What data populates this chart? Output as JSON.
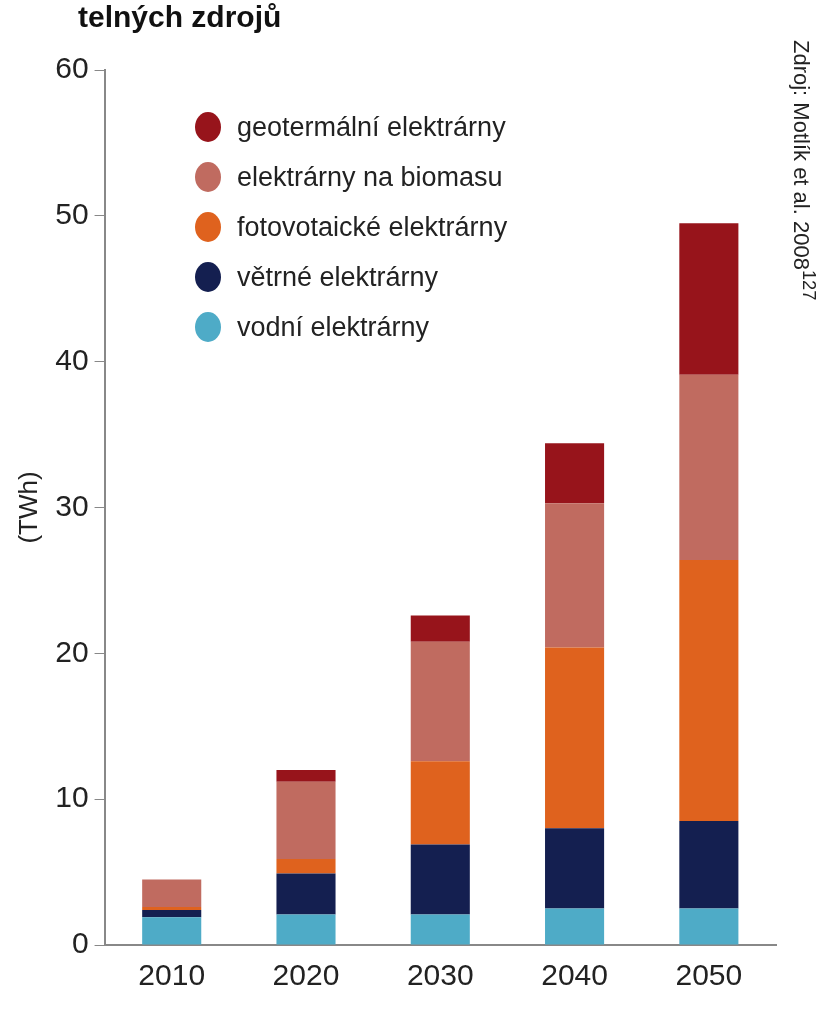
{
  "chart_data": {
    "type": "bar",
    "title": "telných zdrojů",
    "ylabel": "(TWh)",
    "annotations": [
      "Zdroj: Motlík et al. 2008$^{127}$"
    ],
    "categories": [
      "2010",
      "2020",
      "2030",
      "2040",
      "2050"
    ],
    "stacked": true,
    "ylim": [
      0,
      60
    ],
    "yticks": [
      0,
      10,
      20,
      30,
      40,
      50,
      60
    ],
    "grid": false,
    "legend": "top left",
    "marker": "circle",
    "series": [
      {
        "name": "vodní elektrárny",
        "color": "#4eabc7",
        "values": [
          1.9,
          2.1,
          2.1,
          2.5,
          2.5
        ]
      },
      {
        "name": "větrné elektrárny",
        "color": "#141f50",
        "values": [
          0.5,
          2.8,
          4.8,
          5.5,
          6.0
        ]
      },
      {
        "name": "fotovotaické elektrárny",
        "color": "#df621e",
        "values": [
          0.2,
          1.0,
          5.7,
          12.4,
          17.9
        ]
      },
      {
        "name": "elektrárny na biomasu",
        "color": "#c06b60",
        "values": [
          1.9,
          5.3,
          8.2,
          9.9,
          12.7
        ]
      },
      {
        "name": "geotermální elektrárny",
        "color": "#97141b",
        "values": [
          0,
          0.8,
          1.8,
          4.1,
          10.4
        ]
      }
    ]
  }
}
